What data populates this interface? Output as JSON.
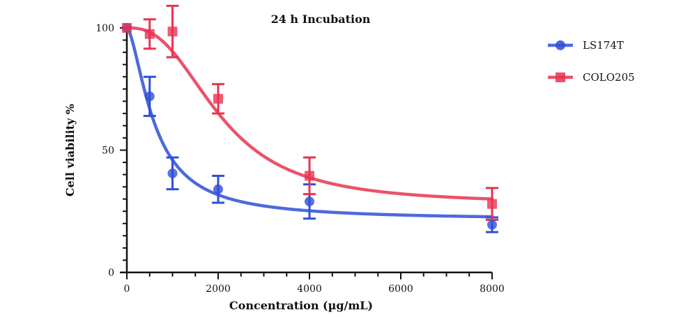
{
  "chart_data": {
    "type": "line",
    "title": "24 h Incubation",
    "xlabel": "Concentration (µg/mL)",
    "ylabel": "Cell viability %",
    "xlim": [
      0,
      8000
    ],
    "ylim": [
      0,
      100
    ],
    "x_ticks": [
      "0",
      "2000",
      "4000",
      "6000",
      "8000"
    ],
    "y_ticks": [
      "0",
      "50",
      "100"
    ],
    "legend_position": "top-right",
    "grid": false,
    "series": [
      {
        "name": "LS174T",
        "color": "#2e4fd6",
        "marker": "circle",
        "points": [
          {
            "x": 0,
            "y": 100,
            "err": 0
          },
          {
            "x": 500,
            "y": 72,
            "err": 8
          },
          {
            "x": 1000,
            "y": 40.5,
            "err": 6.5
          },
          {
            "x": 2000,
            "y": 34,
            "err": 5.5
          },
          {
            "x": 4000,
            "y": 29,
            "err": 7
          },
          {
            "x": 8000,
            "y": 19.5,
            "err": 3
          }
        ],
        "fit": {
          "top": 100,
          "bottom": 21.5,
          "ec50": 610,
          "hill": 1.6
        }
      },
      {
        "name": "COLO205",
        "color": "#e8334f",
        "marker": "square",
        "points": [
          {
            "x": 0,
            "y": 100,
            "err": 0
          },
          {
            "x": 500,
            "y": 97.5,
            "err": 6
          },
          {
            "x": 1000,
            "y": 98.5,
            "err": 10.5
          },
          {
            "x": 2000,
            "y": 71,
            "err": 6
          },
          {
            "x": 4000,
            "y": 39.5,
            "err": 7.5
          },
          {
            "x": 8000,
            "y": 28,
            "err": 6.5
          }
        ],
        "fit": {
          "top": 100,
          "bottom": 28,
          "ec50": 2050,
          "hill": 2.6
        }
      }
    ]
  }
}
